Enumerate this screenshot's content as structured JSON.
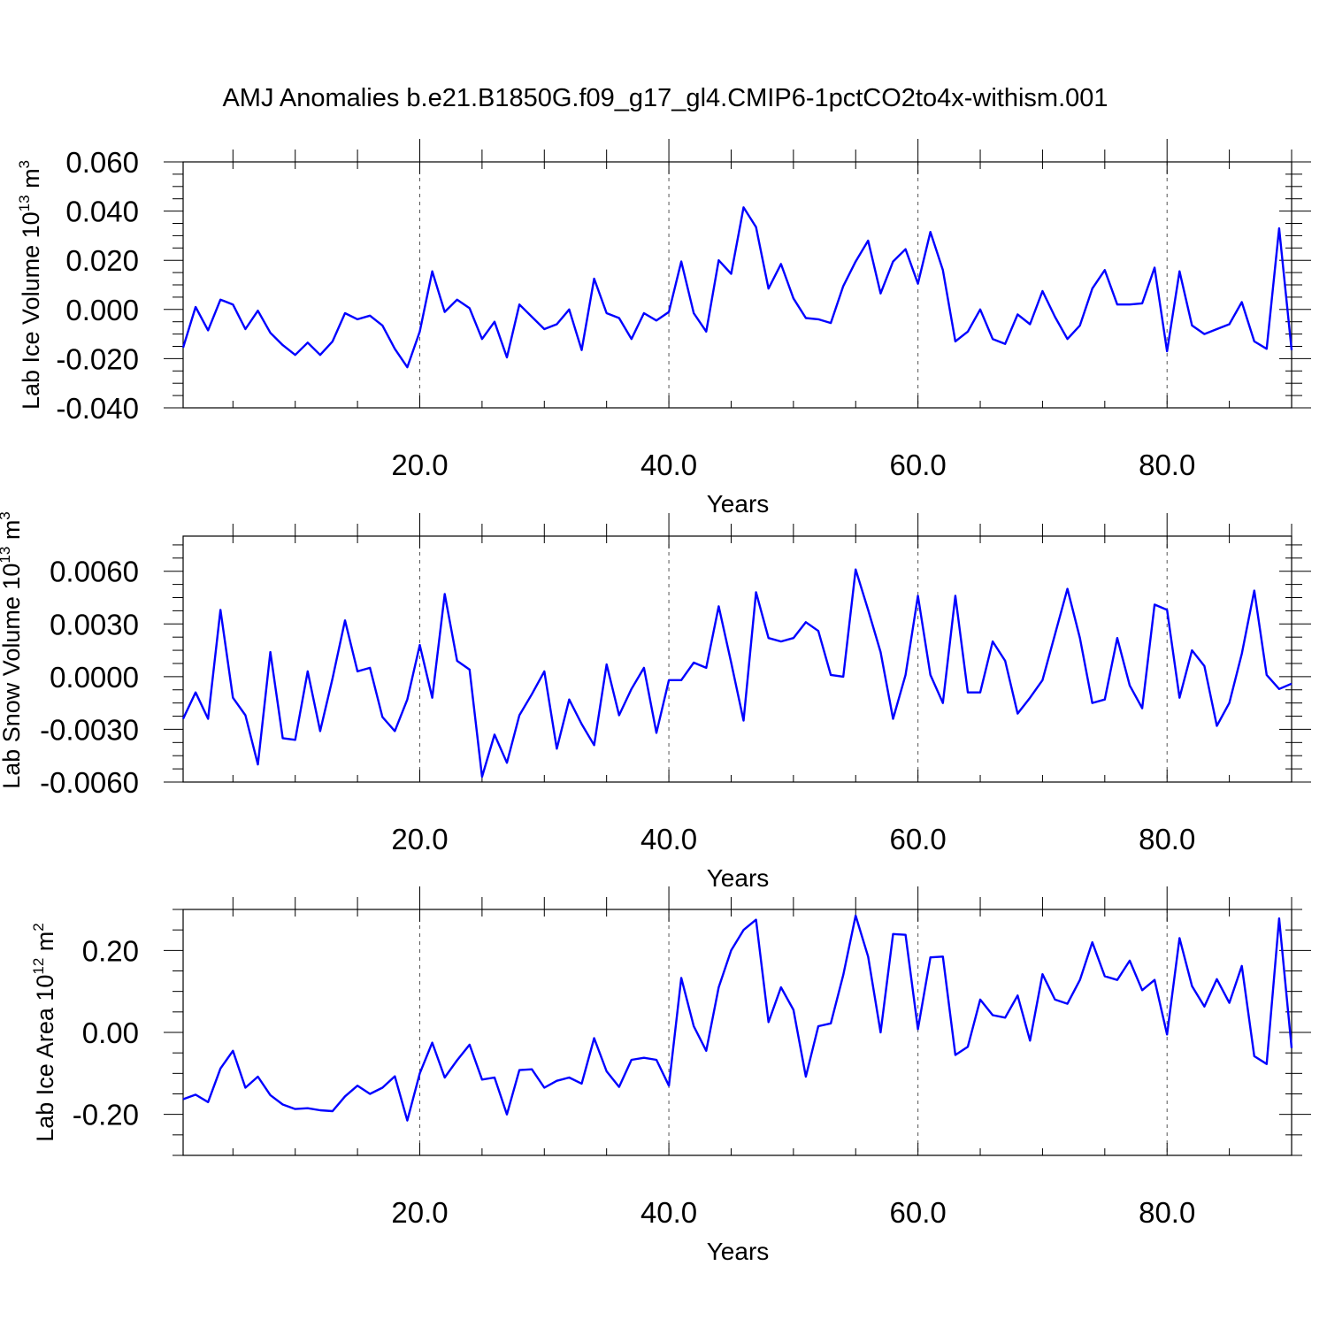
{
  "title": "AMJ Anomalies b.e21.B1850G.f09_g17_gl4.CMIP6-1pctCO2to4x-withism.001",
  "chart_data": [
    {
      "type": "line",
      "ylabel": {
        "main": "Lab Ice Volume 10",
        "exp": "13",
        "unit": " m",
        "unit_exp": "3"
      },
      "xlabel": "Years",
      "xlim": [
        1,
        90
      ],
      "ylim": [
        -0.04,
        0.06
      ],
      "yticks": [
        -0.04,
        -0.02,
        0.0,
        0.02,
        0.04,
        0.06
      ],
      "ytick_labels": [
        "-0.040",
        "-0.020",
        "0.000",
        "0.020",
        "0.040",
        "0.060"
      ],
      "xticks": [
        20,
        40,
        60,
        80
      ],
      "xtick_labels": [
        "20.0",
        "40.0",
        "60.0",
        "80.0"
      ],
      "grid_x": [
        20,
        40,
        60,
        80
      ],
      "series_color": "#0000ff",
      "x_start": 1,
      "values": [
        -0.0155,
        0.001,
        -0.0085,
        0.004,
        0.002,
        -0.008,
        -0.0005,
        -0.0095,
        -0.0145,
        -0.0185,
        -0.0135,
        -0.0185,
        -0.013,
        -0.0015,
        -0.004,
        -0.0025,
        -0.0065,
        -0.016,
        -0.0235,
        -0.009,
        0.0155,
        -0.001,
        0.004,
        0.0005,
        -0.012,
        -0.005,
        -0.0195,
        0.002,
        -0.003,
        -0.008,
        -0.006,
        0.0,
        -0.0165,
        0.0125,
        -0.0015,
        -0.0035,
        -0.012,
        -0.0015,
        -0.0045,
        -0.001,
        0.0195,
        -0.0015,
        -0.009,
        0.02,
        0.0145,
        0.0415,
        0.0335,
        0.0085,
        0.0185,
        0.0045,
        -0.0035,
        -0.004,
        -0.0055,
        0.0095,
        0.0195,
        0.028,
        0.0065,
        0.0195,
        0.0245,
        0.0105,
        0.0315,
        0.016,
        -0.013,
        -0.009,
        0.0,
        -0.012,
        -0.014,
        -0.002,
        -0.006,
        0.0075,
        -0.003,
        -0.012,
        -0.0065,
        0.0085,
        0.016,
        0.002,
        0.002,
        0.0025,
        0.017,
        -0.017,
        0.0155,
        -0.0065,
        -0.01,
        -0.008,
        -0.006,
        0.003,
        -0.013,
        -0.016,
        0.033,
        -0.0165
      ]
    },
    {
      "type": "line",
      "ylabel": {
        "main": "Lab Snow Volume 10",
        "exp": "13",
        "unit": " m",
        "unit_exp": "3"
      },
      "xlabel": "Years",
      "xlim": [
        1,
        90
      ],
      "ylim": [
        -0.006,
        0.008
      ],
      "yticks": [
        -0.006,
        -0.003,
        0.0,
        0.003,
        0.006
      ],
      "ytick_labels": [
        "-0.0060",
        "-0.0030",
        "0.0000",
        "0.0030",
        "0.0060"
      ],
      "xticks": [
        20,
        40,
        60,
        80
      ],
      "xtick_labels": [
        "20.0",
        "40.0",
        "60.0",
        "80.0"
      ],
      "grid_x": [
        20,
        40,
        60,
        80
      ],
      "series_color": "#0000ff",
      "x_start": 1,
      "values": [
        -0.0024,
        -0.0009,
        -0.0024,
        0.0038,
        -0.0012,
        -0.0022,
        -0.005,
        0.0014,
        -0.0035,
        -0.0036,
        0.0003,
        -0.0031,
        -0.0001,
        0.0032,
        0.0003,
        0.0005,
        -0.0023,
        -0.0031,
        -0.0013,
        0.0018,
        -0.0012,
        0.0047,
        0.0009,
        0.0004,
        -0.0057,
        -0.0033,
        -0.0049,
        -0.0022,
        -0.001,
        0.0003,
        -0.0041,
        -0.0013,
        -0.0027,
        -0.0039,
        0.0007,
        -0.0022,
        -0.0007,
        0.0005,
        -0.0032,
        -0.0002,
        -0.0002,
        0.0008,
        0.0005,
        0.004,
        0.0008,
        -0.0025,
        0.0048,
        0.0022,
        0.002,
        0.0022,
        0.0031,
        0.0026,
        0.0001,
        0.0,
        0.0061,
        0.0038,
        0.0014,
        -0.0024,
        0.0001,
        0.0046,
        0.0001,
        -0.0015,
        0.0046,
        -0.0009,
        -0.0009,
        0.002,
        0.0009,
        -0.0021,
        -0.0012,
        -0.0002,
        0.0024,
        0.005,
        0.0022,
        -0.0015,
        -0.0013,
        0.0022,
        -0.0005,
        -0.0018,
        0.0041,
        0.0038,
        -0.0012,
        0.0015,
        0.0006,
        -0.0028,
        -0.0015,
        0.0013,
        0.0049,
        0.0001,
        -0.0007,
        -0.0004
      ]
    },
    {
      "type": "line",
      "ylabel": {
        "main": "Lab Ice Area 10",
        "exp": "12",
        "unit": " m",
        "unit_exp": "2"
      },
      "xlabel": "Years",
      "xlim": [
        1,
        90
      ],
      "ylim": [
        -0.3,
        0.3
      ],
      "yticks": [
        -0.2,
        0.0,
        0.2
      ],
      "ytick_labels": [
        "-0.20",
        "0.00",
        "0.20"
      ],
      "xticks": [
        20,
        40,
        60,
        80
      ],
      "xtick_labels": [
        "20.0",
        "40.0",
        "60.0",
        "80.0"
      ],
      "grid_x": [
        20,
        40,
        60,
        80
      ],
      "series_color": "#0000ff",
      "x_start": 1,
      "values": [
        -0.163,
        -0.152,
        -0.17,
        -0.088,
        -0.045,
        -0.135,
        -0.108,
        -0.153,
        -0.176,
        -0.187,
        -0.185,
        -0.19,
        -0.192,
        -0.156,
        -0.13,
        -0.15,
        -0.135,
        -0.107,
        -0.215,
        -0.1,
        -0.025,
        -0.11,
        -0.068,
        -0.03,
        -0.115,
        -0.11,
        -0.2,
        -0.092,
        -0.09,
        -0.135,
        -0.118,
        -0.11,
        -0.125,
        -0.014,
        -0.095,
        -0.133,
        -0.067,
        -0.062,
        -0.067,
        -0.13,
        0.133,
        0.015,
        -0.045,
        0.11,
        0.2,
        0.25,
        0.275,
        0.025,
        0.11,
        0.055,
        -0.108,
        0.015,
        0.022,
        0.14,
        0.285,
        0.185,
        0.0,
        0.24,
        0.238,
        0.008,
        0.183,
        0.185,
        -0.055,
        -0.035,
        0.08,
        0.042,
        0.036,
        0.09,
        -0.02,
        0.142,
        0.08,
        0.07,
        0.128,
        0.22,
        0.137,
        0.128,
        0.175,
        0.103,
        0.128,
        -0.005,
        0.23,
        0.113,
        0.063,
        0.13,
        0.072,
        0.162,
        -0.058,
        -0.077,
        0.278,
        -0.038
      ]
    }
  ]
}
